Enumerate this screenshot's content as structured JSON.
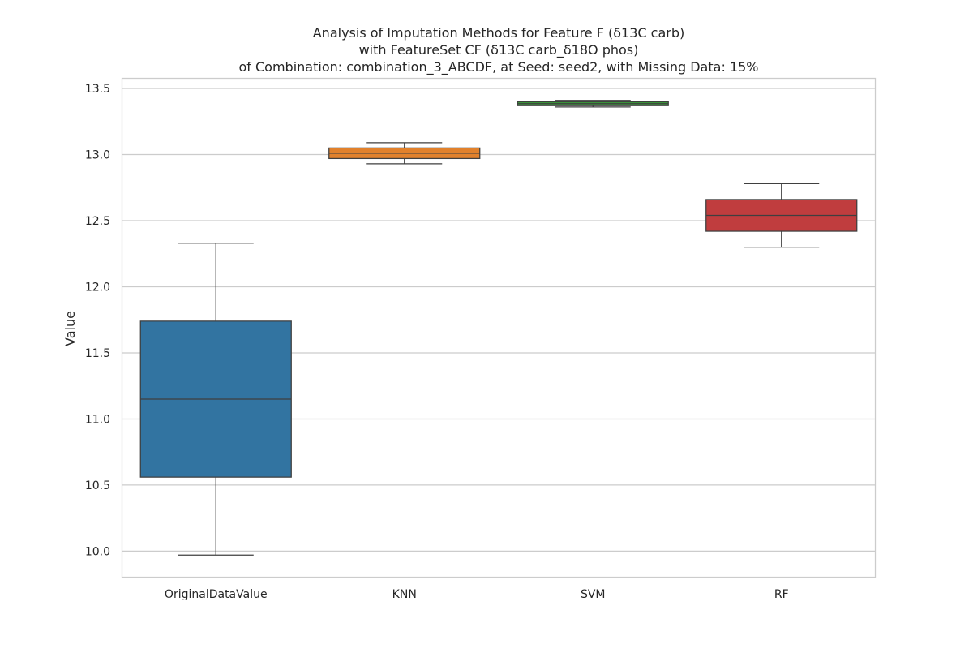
{
  "chart_data": {
    "type": "box",
    "title_lines": [
      "Analysis of Imputation Methods for Feature F (δ13C carb)",
      "with FeatureSet CF (δ13C carb_δ18O phos)",
      "of Combination: combination_3_ABCDF, at Seed: seed2, with Missing Data: 15%"
    ],
    "xlabel": "",
    "ylabel": "Value",
    "ylim": [
      9.8,
      13.58
    ],
    "yticks": [
      "10.0",
      "10.5",
      "11.0",
      "11.5",
      "12.0",
      "12.5",
      "13.0",
      "13.5"
    ],
    "grid": true,
    "categories": [
      "OriginalDataValue",
      "KNN",
      "SVM",
      "RF"
    ],
    "colors": [
      "#3274a1",
      "#e1812c",
      "#3a923a",
      "#c03d3e"
    ],
    "boxes": [
      {
        "category": "OriginalDataValue",
        "whisker_low": 9.97,
        "q1": 10.56,
        "median": 11.15,
        "q3": 11.74,
        "whisker_high": 12.33
      },
      {
        "category": "KNN",
        "whisker_low": 12.93,
        "q1": 12.97,
        "median": 13.01,
        "q3": 13.05,
        "whisker_high": 13.09
      },
      {
        "category": "SVM",
        "whisker_low": 13.36,
        "q1": 13.37,
        "median": 13.385,
        "q3": 13.4,
        "whisker_high": 13.41
      },
      {
        "category": "RF",
        "whisker_low": 12.3,
        "q1": 12.42,
        "median": 12.54,
        "q3": 12.66,
        "whisker_high": 12.78
      }
    ]
  }
}
